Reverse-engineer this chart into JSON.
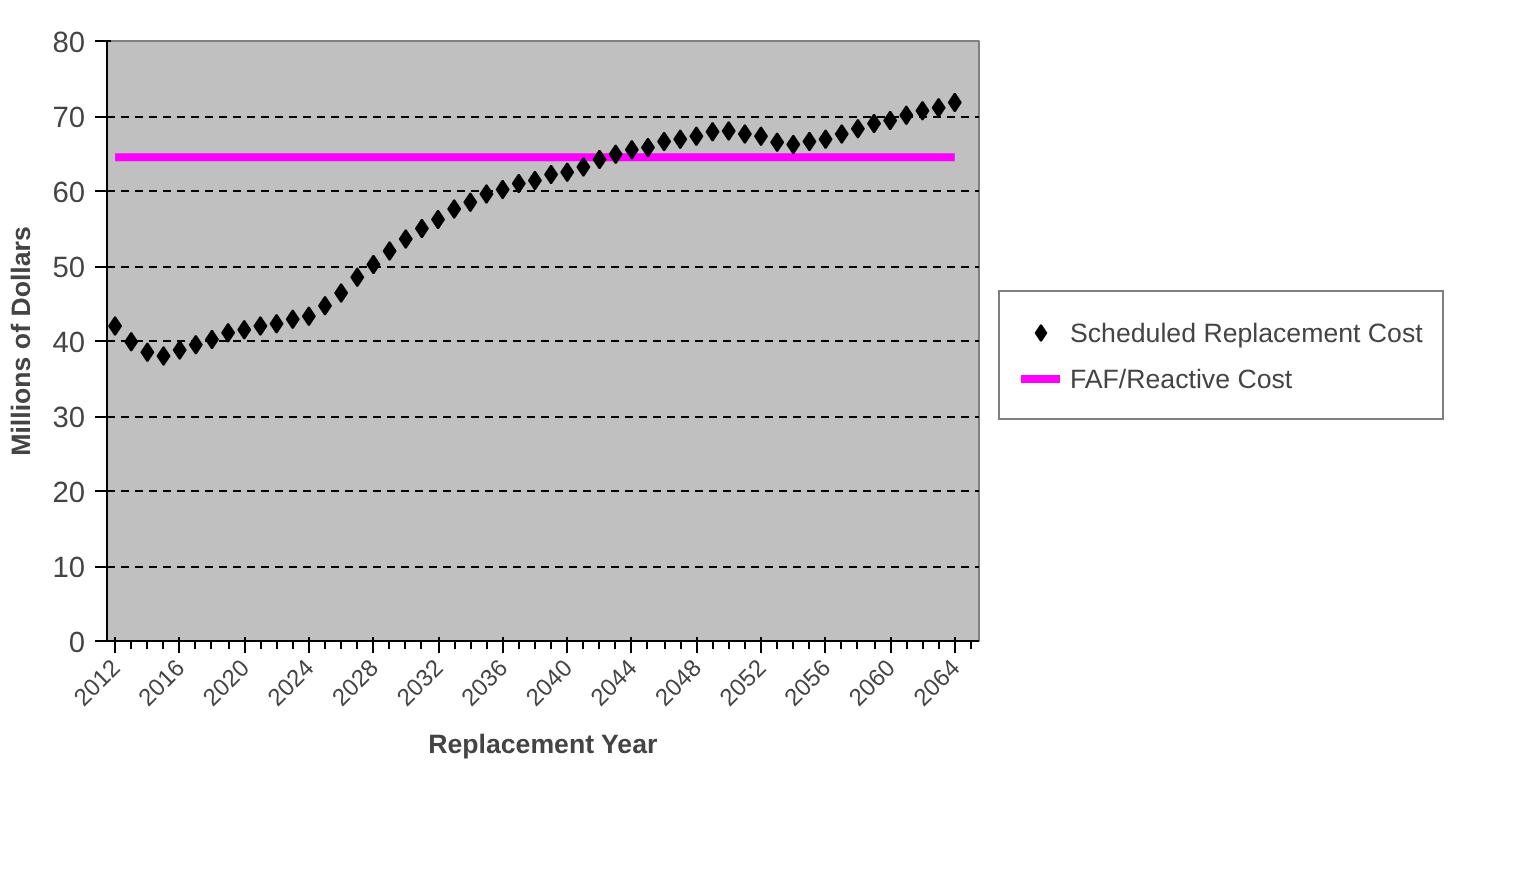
{
  "chart_data": {
    "type": "scatter",
    "xlabel": "Replacement Year",
    "ylabel": "Millions of Dollars",
    "x": [
      2012,
      2013,
      2014,
      2015,
      2016,
      2017,
      2018,
      2019,
      2020,
      2021,
      2022,
      2023,
      2024,
      2025,
      2026,
      2027,
      2028,
      2029,
      2030,
      2031,
      2032,
      2033,
      2034,
      2035,
      2036,
      2037,
      2038,
      2039,
      2040,
      2041,
      2042,
      2043,
      2044,
      2045,
      2046,
      2047,
      2048,
      2049,
      2050,
      2051,
      2052,
      2053,
      2054,
      2055,
      2056,
      2057,
      2058,
      2059,
      2060,
      2061,
      2062,
      2063,
      2064
    ],
    "series": [
      {
        "name": "Scheduled Replacement Cost",
        "color": "#000000",
        "marker": "diamond",
        "values": [
          42.0,
          39.9,
          38.5,
          38.0,
          38.8,
          39.5,
          40.2,
          41.1,
          41.5,
          42.0,
          42.3,
          42.9,
          43.3,
          44.7,
          46.4,
          48.5,
          50.2,
          52.0,
          53.6,
          55.0,
          56.2,
          57.6,
          58.5,
          59.6,
          60.2,
          61.0,
          61.4,
          62.2,
          62.5,
          63.2,
          64.2,
          64.9,
          65.5,
          65.8,
          66.6,
          66.9,
          67.3,
          67.9,
          68.0,
          67.6,
          67.3,
          66.5,
          66.2,
          66.6,
          66.9,
          67.6,
          68.3,
          69.0,
          69.4,
          70.1,
          70.7,
          71.1,
          71.8
        ]
      },
      {
        "name": "FAF/Reactive Cost",
        "type": "line",
        "color": "#ff00ff",
        "marker": "none",
        "line_style": "solid",
        "x": [
          2012,
          2064
        ],
        "values": [
          64.5,
          64.5
        ]
      }
    ],
    "xlim": [
      2011.5,
      2065.5
    ],
    "xticks": [
      2012,
      2016,
      2020,
      2024,
      2028,
      2032,
      2036,
      2040,
      2044,
      2048,
      2052,
      2056,
      2060,
      2064
    ],
    "ylim": [
      0,
      80
    ],
    "yticks": [
      0,
      10,
      20,
      30,
      40,
      50,
      60,
      70,
      80
    ],
    "grid": "y",
    "legend": "right"
  }
}
